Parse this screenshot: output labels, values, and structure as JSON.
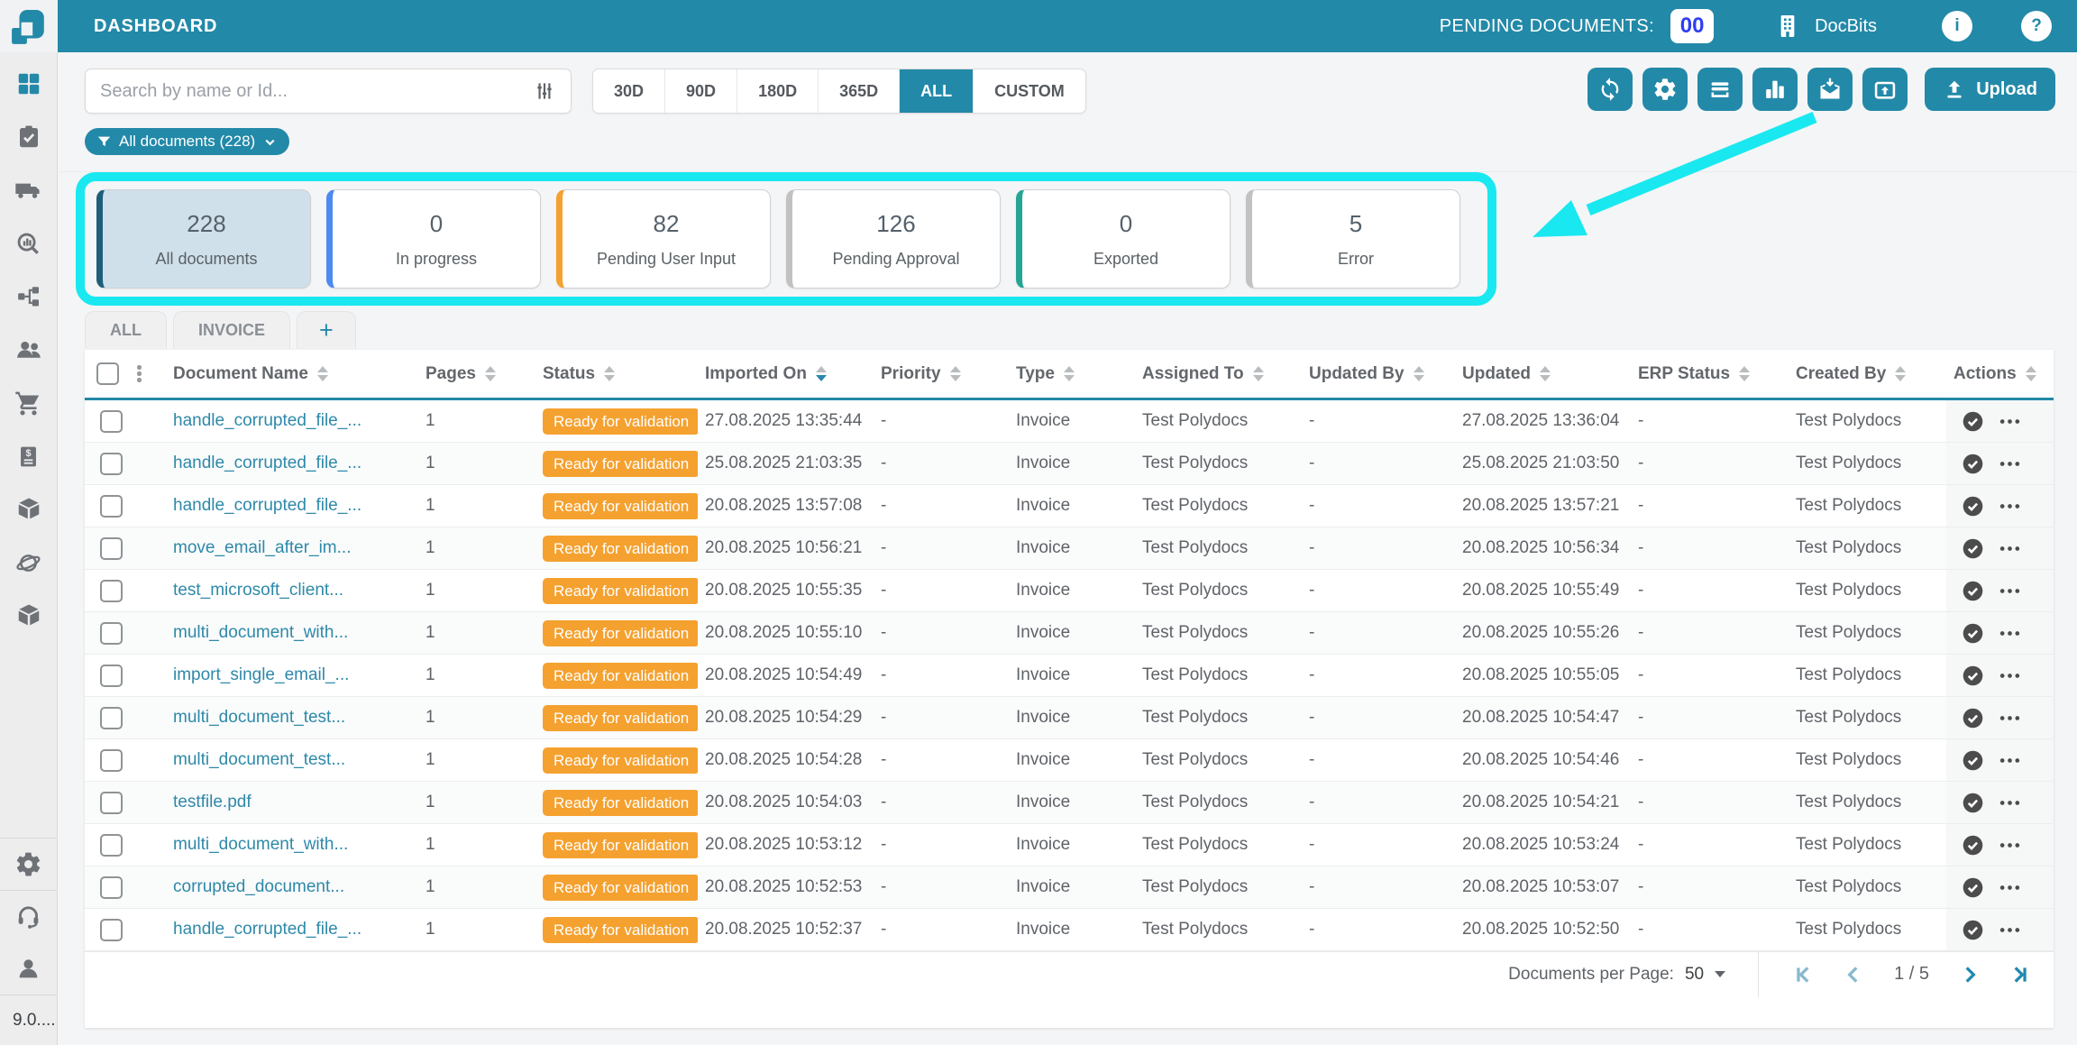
{
  "topbar": {
    "title": "DASHBOARD",
    "pending_label": "PENDING DOCUMENTS:",
    "pending_count": "00",
    "brand": "DocBits",
    "info_glyph": "i",
    "help_glyph": "?"
  },
  "toolbar": {
    "search_placeholder": "Search by name or Id...",
    "date_filters": [
      "30D",
      "90D",
      "180D",
      "365D",
      "ALL",
      "CUSTOM"
    ],
    "active_filter": "ALL",
    "action_icons": [
      "refresh",
      "settings",
      "scanner",
      "bar-chart",
      "mail-import",
      "box-upload"
    ],
    "upload_label": "Upload"
  },
  "filter_chip": {
    "label": "All documents (228)"
  },
  "cards": [
    {
      "value": "228",
      "label": "All documents",
      "accent": "#1d5f7a",
      "selected": true
    },
    {
      "value": "0",
      "label": "In progress",
      "accent": "#4d8af0",
      "selected": false
    },
    {
      "value": "82",
      "label": "Pending User Input",
      "accent": "#f5a12f",
      "selected": false
    },
    {
      "value": "126",
      "label": "Pending Approval",
      "accent": "#c2c2c2",
      "selected": false
    },
    {
      "value": "0",
      "label": "Exported",
      "accent": "#26a594",
      "selected": false
    },
    {
      "value": "5",
      "label": "Error",
      "accent": "#c2c2c2",
      "selected": false
    }
  ],
  "tabs": [
    {
      "label": "ALL"
    },
    {
      "label": "INVOICE"
    },
    {
      "label": "+"
    }
  ],
  "table": {
    "columns": [
      {
        "label": "Document Name"
      },
      {
        "label": "Pages"
      },
      {
        "label": "Status"
      },
      {
        "label": "Imported On",
        "sorted": "desc"
      },
      {
        "label": "Priority"
      },
      {
        "label": "Type"
      },
      {
        "label": "Assigned To"
      },
      {
        "label": "Updated By"
      },
      {
        "label": "Updated"
      },
      {
        "label": "ERP Status"
      },
      {
        "label": "Created By"
      },
      {
        "label": "Actions"
      }
    ],
    "rows": [
      {
        "name": "handle_corrupted_file_...",
        "pages": "1",
        "status": "Ready for validation",
        "imported": "27.08.2025 13:35:44",
        "priority": "-",
        "type": "Invoice",
        "assigned": "Test Polydocs",
        "updated_by": "-",
        "updated": "27.08.2025 13:36:04",
        "erp": "-",
        "created_by": "Test Polydocs"
      },
      {
        "name": "handle_corrupted_file_...",
        "pages": "1",
        "status": "Ready for validation",
        "imported": "25.08.2025 21:03:35",
        "priority": "-",
        "type": "Invoice",
        "assigned": "Test Polydocs",
        "updated_by": "-",
        "updated": "25.08.2025 21:03:50",
        "erp": "-",
        "created_by": "Test Polydocs"
      },
      {
        "name": "handle_corrupted_file_...",
        "pages": "1",
        "status": "Ready for validation",
        "imported": "20.08.2025 13:57:08",
        "priority": "-",
        "type": "Invoice",
        "assigned": "Test Polydocs",
        "updated_by": "-",
        "updated": "20.08.2025 13:57:21",
        "erp": "-",
        "created_by": "Test Polydocs"
      },
      {
        "name": "move_email_after_im...",
        "pages": "1",
        "status": "Ready for validation",
        "imported": "20.08.2025 10:56:21",
        "priority": "-",
        "type": "Invoice",
        "assigned": "Test Polydocs",
        "updated_by": "-",
        "updated": "20.08.2025 10:56:34",
        "erp": "-",
        "created_by": "Test Polydocs"
      },
      {
        "name": "test_microsoft_client...",
        "pages": "1",
        "status": "Ready for validation",
        "imported": "20.08.2025 10:55:35",
        "priority": "-",
        "type": "Invoice",
        "assigned": "Test Polydocs",
        "updated_by": "-",
        "updated": "20.08.2025 10:55:49",
        "erp": "-",
        "created_by": "Test Polydocs"
      },
      {
        "name": "multi_document_with...",
        "pages": "1",
        "status": "Ready for validation",
        "imported": "20.08.2025 10:55:10",
        "priority": "-",
        "type": "Invoice",
        "assigned": "Test Polydocs",
        "updated_by": "-",
        "updated": "20.08.2025 10:55:26",
        "erp": "-",
        "created_by": "Test Polydocs"
      },
      {
        "name": "import_single_email_...",
        "pages": "1",
        "status": "Ready for validation",
        "imported": "20.08.2025 10:54:49",
        "priority": "-",
        "type": "Invoice",
        "assigned": "Test Polydocs",
        "updated_by": "-",
        "updated": "20.08.2025 10:55:05",
        "erp": "-",
        "created_by": "Test Polydocs"
      },
      {
        "name": "multi_document_test...",
        "pages": "1",
        "status": "Ready for validation",
        "imported": "20.08.2025 10:54:29",
        "priority": "-",
        "type": "Invoice",
        "assigned": "Test Polydocs",
        "updated_by": "-",
        "updated": "20.08.2025 10:54:47",
        "erp": "-",
        "created_by": "Test Polydocs"
      },
      {
        "name": "multi_document_test...",
        "pages": "1",
        "status": "Ready for validation",
        "imported": "20.08.2025 10:54:28",
        "priority": "-",
        "type": "Invoice",
        "assigned": "Test Polydocs",
        "updated_by": "-",
        "updated": "20.08.2025 10:54:46",
        "erp": "-",
        "created_by": "Test Polydocs"
      },
      {
        "name": "testfile.pdf",
        "pages": "1",
        "status": "Ready for validation",
        "imported": "20.08.2025 10:54:03",
        "priority": "-",
        "type": "Invoice",
        "assigned": "Test Polydocs",
        "updated_by": "-",
        "updated": "20.08.2025 10:54:21",
        "erp": "-",
        "created_by": "Test Polydocs"
      },
      {
        "name": "multi_document_with...",
        "pages": "1",
        "status": "Ready for validation",
        "imported": "20.08.2025 10:53:12",
        "priority": "-",
        "type": "Invoice",
        "assigned": "Test Polydocs",
        "updated_by": "-",
        "updated": "20.08.2025 10:53:24",
        "erp": "-",
        "created_by": "Test Polydocs"
      },
      {
        "name": "corrupted_document...",
        "pages": "1",
        "status": "Ready for validation",
        "imported": "20.08.2025 10:52:53",
        "priority": "-",
        "type": "Invoice",
        "assigned": "Test Polydocs",
        "updated_by": "-",
        "updated": "20.08.2025 10:53:07",
        "erp": "-",
        "created_by": "Test Polydocs"
      },
      {
        "name": "handle_corrupted_file_...",
        "pages": "1",
        "status": "Ready for validation",
        "imported": "20.08.2025 10:52:37",
        "priority": "-",
        "type": "Invoice",
        "assigned": "Test Polydocs",
        "updated_by": "-",
        "updated": "20.08.2025 10:52:50",
        "erp": "-",
        "created_by": "Test Polydocs"
      }
    ]
  },
  "pagination": {
    "per_page_label": "Documents per Page:",
    "per_page": "50",
    "page_label": "1 / 5"
  },
  "sidebar": {
    "icons": [
      "dashboard-grid",
      "clipboard-check",
      "truck",
      "analytics-search",
      "workflow",
      "users",
      "cart",
      "invoice-dollar",
      "package",
      "integrations",
      "package-2",
      "settings-gear",
      "support-headset",
      "profile"
    ],
    "version": "9.0...."
  },
  "colors": {
    "accent_teal": "#2389a8",
    "badge_orange": "#f5a12f",
    "annotation_cyan": "#19e8f0",
    "pending_count_blue": "#2d3ef2",
    "link": "#2e89a9"
  }
}
